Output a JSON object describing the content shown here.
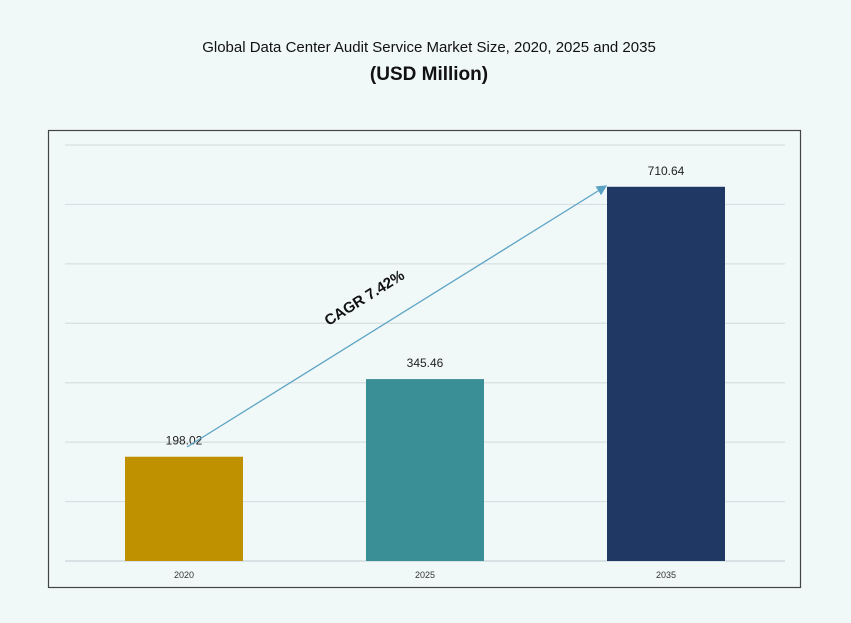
{
  "chart_data": {
    "type": "bar",
    "title": "Global Data Center Audit Service Market Size, 2020, 2025 and 2035",
    "subtitle": "(USD Million)",
    "categories": [
      "2020",
      "2025",
      "2035"
    ],
    "values": [
      198.02,
      345.46,
      710.64
    ],
    "data_labels": [
      "198.02",
      "345.46",
      "710.64"
    ],
    "colors": [
      "#bf9000",
      "#3a8f97",
      "#1f3864"
    ],
    "arrow_color": "#5ba3c4",
    "annotation": "CAGR 7.42%",
    "xlabel": "",
    "ylabel": "",
    "ylim": [
      0,
      790
    ],
    "grid": true,
    "legend": "none"
  }
}
